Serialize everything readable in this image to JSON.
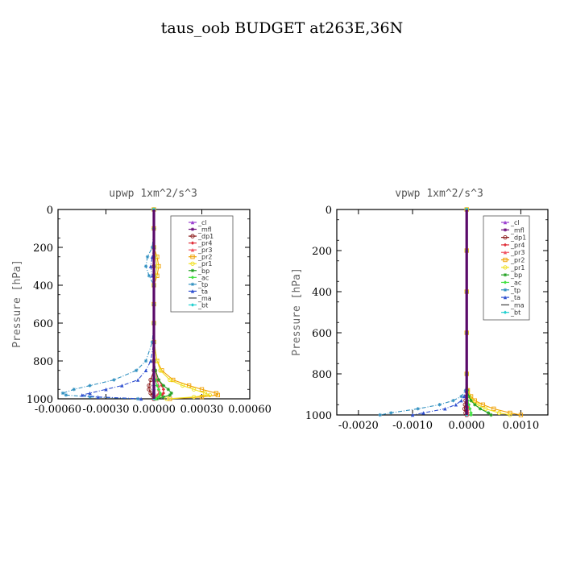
{
  "figure_title": "taus_oob  BUDGET at263E,36N",
  "legend_labels": [
    "_cl",
    "_mfl",
    "_dp1",
    "_pr4",
    "_pr3",
    "_pr2",
    "_pr1",
    "_bp",
    "_ac",
    "_tp",
    "_ta",
    "_ma",
    "_bt"
  ],
  "series_colors": [
    "#9b3fd0",
    "#6a0a7a",
    "#8b1a1a",
    "#e0303a",
    "#f05060",
    "#f0a000",
    "#f0e020",
    "#20a020",
    "#40e040",
    "#3090c0",
    "#3050d0",
    "#404040",
    "#20d0d0"
  ],
  "chart_data": [
    {
      "type": "line",
      "title": "upwp  1xm^2/s^3",
      "ylabel": "Pressure [hPa]",
      "xlabel": "",
      "xlim": [
        -0.0006,
        0.0006
      ],
      "ylim": [
        1000,
        0
      ],
      "xticks": [
        "-0.00060",
        "-0.00030",
        "0.00000",
        "0.00030",
        "0.00060"
      ],
      "yticks": [
        "0",
        "200",
        "400",
        "600",
        "800",
        "1000"
      ],
      "legend_position": "top-right",
      "y": [
        0,
        100,
        200,
        250,
        300,
        350,
        400,
        500,
        600,
        700,
        800,
        850,
        900,
        930,
        950,
        970,
        980,
        990,
        1000
      ],
      "series": [
        {
          "name": "_cl",
          "values": [
            0,
            0,
            0,
            0,
            0,
            0,
            0,
            0,
            0,
            0,
            0,
            0,
            0,
            0,
            0,
            0,
            0,
            0,
            0
          ]
        },
        {
          "name": "_mfl",
          "values": [
            0,
            0,
            0,
            0,
            0,
            0,
            0,
            0,
            0,
            0,
            0,
            0,
            0,
            0,
            0,
            0,
            0,
            0,
            0
          ]
        },
        {
          "name": "_dp1",
          "values": [
            0,
            0,
            0,
            0,
            0,
            0,
            0,
            0,
            0,
            0,
            0,
            0,
            -2e-05,
            -3e-05,
            -3e-05,
            -2e-05,
            -1e-05,
            0,
            0
          ]
        },
        {
          "name": "_pr4",
          "values": [
            0,
            0,
            0,
            0,
            0,
            0,
            0,
            0,
            0,
            0,
            0,
            1e-05,
            3e-05,
            5e-05,
            6e-05,
            6e-05,
            5e-05,
            3e-05,
            1e-05
          ]
        },
        {
          "name": "_pr3",
          "values": [
            0,
            0,
            0,
            0,
            0,
            0,
            0,
            0,
            0,
            0,
            0,
            1e-05,
            2e-05,
            3e-05,
            3e-05,
            3e-05,
            2e-05,
            1e-05,
            0
          ]
        },
        {
          "name": "_pr2",
          "values": [
            0,
            0,
            0,
            2e-05,
            3e-05,
            2e-05,
            0,
            0,
            0,
            0,
            2e-05,
            5e-05,
            0.00012,
            0.00022,
            0.0003,
            0.00039,
            0.0004,
            0.0003,
            0.0001
          ]
        },
        {
          "name": "_pr1",
          "values": [
            0,
            0,
            0,
            1e-05,
            2e-05,
            1e-05,
            0,
            0,
            0,
            0,
            2e-05,
            4e-05,
            0.0001,
            0.00018,
            0.00025,
            0.00032,
            0.00035,
            0.00025,
            8e-05
          ]
        },
        {
          "name": "_bp",
          "values": [
            0,
            0,
            0,
            0,
            0,
            0,
            0,
            0,
            0,
            0,
            0,
            1e-05,
            3e-05,
            6e-05,
            9e-05,
            0.00011,
            0.0001,
            6e-05,
            2e-05
          ]
        },
        {
          "name": "_ac",
          "values": [
            0,
            0,
            0,
            0,
            0,
            0,
            0,
            0,
            0,
            0,
            0,
            0,
            1e-05,
            2e-05,
            3e-05,
            4e-05,
            4e-05,
            3e-05,
            1e-05
          ]
        },
        {
          "name": "_tp",
          "values": [
            0,
            0,
            -1e-05,
            -4e-05,
            -5e-05,
            -3e-05,
            0,
            0,
            0,
            -1e-05,
            -5e-05,
            -0.00011,
            -0.00025,
            -0.0004,
            -0.0005,
            -0.00057,
            -0.00055,
            -0.0004,
            -0.0001
          ]
        },
        {
          "name": "_ta",
          "values": [
            0,
            0,
            0,
            -1e-05,
            -2e-05,
            -1e-05,
            0,
            0,
            0,
            0,
            -2e-05,
            -5e-05,
            -0.0001,
            -0.0002,
            -0.0003,
            -0.0004,
            -0.00045,
            -0.00035,
            -8e-05
          ]
        },
        {
          "name": "_ma",
          "values": [
            0,
            0,
            0,
            0,
            0,
            0,
            0,
            0,
            0,
            0,
            0,
            0,
            0,
            0,
            0,
            0,
            0,
            0,
            0
          ]
        },
        {
          "name": "_bt",
          "values": [
            0,
            0,
            0,
            0,
            0,
            0,
            0,
            0,
            0,
            0,
            0,
            0,
            0,
            0,
            0,
            0,
            0,
            0,
            0
          ]
        }
      ]
    },
    {
      "type": "line",
      "title": "vpwp  1xm^2/s^3",
      "ylabel": "Pressure [hPa]",
      "xlabel": "",
      "xlim": [
        -0.0024,
        0.0015
      ],
      "ylim": [
        1000,
        0
      ],
      "xticks": [
        "-0.0020",
        "-0.0010",
        "0.0000",
        "0.0010"
      ],
      "yticks": [
        "0",
        "200",
        "400",
        "600",
        "800",
        "1000"
      ],
      "legend_position": "top-right",
      "y": [
        0,
        200,
        400,
        600,
        800,
        880,
        910,
        930,
        950,
        970,
        990,
        1000
      ],
      "series": [
        {
          "name": "_cl",
          "values": [
            0,
            0,
            0,
            0,
            0,
            0,
            0,
            0,
            0,
            0,
            0,
            0
          ]
        },
        {
          "name": "_mfl",
          "values": [
            0,
            0,
            0,
            0,
            0,
            0,
            0,
            0,
            0,
            0,
            0,
            0
          ]
        },
        {
          "name": "_dp1",
          "values": [
            0,
            0,
            0,
            0,
            0,
            0,
            0,
            -2e-05,
            -3e-05,
            -4e-05,
            -2e-05,
            0
          ]
        },
        {
          "name": "_pr4",
          "values": [
            0,
            0,
            0,
            0,
            0,
            0,
            1e-05,
            2e-05,
            3e-05,
            4e-05,
            2e-05,
            1e-05
          ]
        },
        {
          "name": "_pr3",
          "values": [
            0,
            0,
            0,
            0,
            0,
            0,
            1e-05,
            1e-05,
            2e-05,
            2e-05,
            1e-05,
            0
          ]
        },
        {
          "name": "_pr2",
          "values": [
            0,
            0,
            0,
            0,
            0,
            2e-05,
            8e-05,
            0.00015,
            0.0003,
            0.0005,
            0.0008,
            0.001
          ]
        },
        {
          "name": "_pr1",
          "values": [
            0,
            0,
            0,
            0,
            0,
            1e-05,
            5e-05,
            0.0001,
            0.0002,
            0.00035,
            0.0006,
            0.0008
          ]
        },
        {
          "name": "_bp",
          "values": [
            0,
            0,
            0,
            0,
            0,
            1e-05,
            4e-05,
            8e-05,
            0.00015,
            0.00025,
            0.0004,
            0.00045
          ]
        },
        {
          "name": "_ac",
          "values": [
            0,
            0,
            0,
            0,
            0,
            0,
            1e-05,
            2e-05,
            4e-05,
            6e-05,
            8e-05,
            8e-05
          ]
        },
        {
          "name": "_tp",
          "values": [
            0,
            0,
            0,
            0,
            0,
            -2e-05,
            -0.0001,
            -0.00025,
            -0.0005,
            -0.0009,
            -0.0014,
            -0.0016
          ]
        },
        {
          "name": "_ta",
          "values": [
            0,
            0,
            0,
            0,
            0,
            -1e-05,
            -5e-05,
            -0.0001,
            -0.0002,
            -0.0004,
            -0.0008,
            -0.001
          ]
        },
        {
          "name": "_ma",
          "values": [
            0,
            0,
            0,
            0,
            0,
            0,
            0,
            0,
            0,
            0,
            0,
            0
          ]
        },
        {
          "name": "_bt",
          "values": [
            0,
            0,
            0,
            0,
            0,
            0,
            0,
            0,
            0,
            0,
            0,
            0
          ]
        }
      ]
    }
  ]
}
